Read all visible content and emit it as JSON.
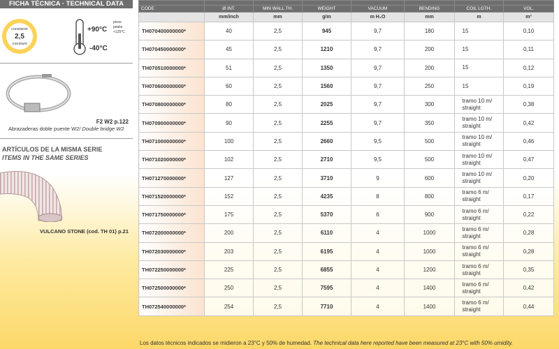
{
  "header": {
    "title": "FICHA TÉCNICA · TECHNICAL DATA"
  },
  "specs": {
    "wall_top": "constante",
    "wall_value": "2,5",
    "wall_bottom": "constant",
    "temp_max": "+90°C",
    "peaks_es": "picos",
    "peaks_en": "peaks",
    "peaks_value": "+125°C",
    "temp_min": "-40°C"
  },
  "accessory": {
    "ref": "F2 W2 p.122",
    "desc_es": "Abrazaderas doble puente W2/",
    "desc_en": "Double bridge W2"
  },
  "series": {
    "title_es": "ARTÍCULOS DE LA MISMA SERIE",
    "title_en": "ITEMS IN THE SAME SERIES",
    "item": "VULCANO STONE (cod. TH 01) p.21"
  },
  "table": {
    "columns": [
      "CODE",
      "Ø INT.",
      "MIN WALL TH.",
      "WEIGHT",
      "VACUUM",
      "BENDING",
      "COIL LGTH.",
      "VOL."
    ],
    "units": [
      "mm/inch",
      "mm",
      "g/m",
      "m H₂O",
      "mm",
      "m",
      "m³"
    ],
    "rows": [
      [
        "TH070400000000*",
        "40",
        "2,5",
        "945",
        "9,7",
        "180",
        "15",
        "0,10"
      ],
      [
        "TH070450000000*",
        "45",
        "2,5",
        "1210",
        "9,7",
        "200",
        "15",
        "0,11"
      ],
      [
        "TH070510000000*",
        "51",
        "2,5",
        "1350",
        "9,7",
        "200",
        "15",
        "0,12"
      ],
      [
        "TH070600000000*",
        "60",
        "2,5",
        "1560",
        "9,7",
        "250",
        "15",
        "0,19"
      ],
      [
        "TH070800000000*",
        "80",
        "2,5",
        "2025",
        "9,7",
        "300",
        "tramo 10 m/ straight",
        "0,38"
      ],
      [
        "TH070900000000*",
        "90",
        "2,5",
        "2255",
        "9,7",
        "350",
        "tramo 10 m/ straight",
        "0,42"
      ],
      [
        "TH071000000000*",
        "100",
        "2,5",
        "2660",
        "9,5",
        "500",
        "tramo 10 m/ straight",
        "0,46"
      ],
      [
        "TH071020000000*",
        "102",
        "2,5",
        "2710",
        "9,5",
        "500",
        "tramo 10 m/ straight",
        "0,47"
      ],
      [
        "TH071270000000*",
        "127",
        "2,5",
        "3710",
        "9",
        "600",
        "tramo 10 m/ straight",
        "0,20"
      ],
      [
        "TH071520000000*",
        "152",
        "2,5",
        "4235",
        "8",
        "800",
        "tramo 6 m/ straight",
        "0,17"
      ],
      [
        "TH071750000000*",
        "175",
        "2,5",
        "5370",
        "6",
        "900",
        "tramo 6 m/ straight",
        "0,22"
      ],
      [
        "TH072000000000*",
        "200",
        "2,5",
        "6110",
        "4",
        "1000",
        "tramo 6 m/ straight",
        "0,28"
      ],
      [
        "TH072030000000*",
        "203",
        "2,5",
        "6195",
        "4",
        "1000",
        "tramo 6 m/ straight",
        "0,28"
      ],
      [
        "TH072250000000*",
        "225",
        "2,5",
        "6855",
        "4",
        "1200",
        "tramo 6 m/ straight",
        "0,35"
      ],
      [
        "TH072500000000*",
        "250",
        "2,5",
        "7595",
        "4",
        "1400",
        "tramo 6 m/ straight",
        "0,42"
      ],
      [
        "TH072540000000*",
        "254",
        "2,5",
        "7710",
        "4",
        "1400",
        "tramo 6 m/ straight",
        "0,44"
      ]
    ]
  },
  "footer": {
    "es": "Los datos técnicos indicados se midieron a 23°C y 50% de humedad.",
    "en": "The technical data here reported have been measured at 23°C with 50% umidity."
  }
}
